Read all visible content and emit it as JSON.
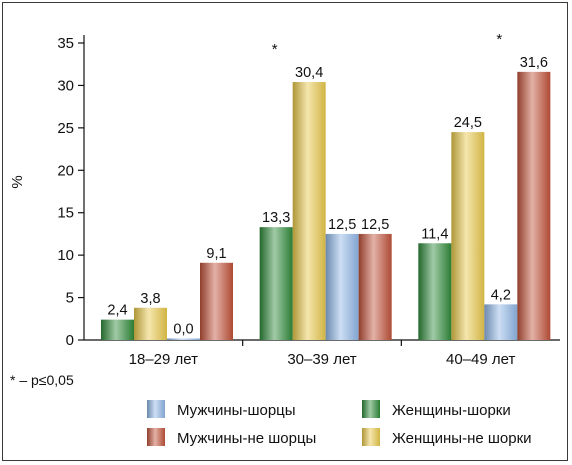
{
  "chart_data": {
    "type": "bar",
    "ylabel": "%",
    "ylim": [
      0,
      35
    ],
    "yticks": [
      "0",
      "5",
      "10",
      "15",
      "20",
      "25",
      "30",
      "35"
    ],
    "categories": [
      "18–29 лет",
      "30–39 лет",
      "40–49 лет"
    ],
    "series_order": [
      "Женщины-шорки",
      "Женщины-не шорки",
      "Мужчины-шорцы",
      "Мужчины-не шорцы"
    ],
    "series": [
      {
        "name": "Женщины-шорки",
        "color": "#2f8a3a",
        "values": [
          2.4,
          13.3,
          11.4
        ],
        "labels": [
          "2,4",
          "13,3",
          "11,4"
        ]
      },
      {
        "name": "Женщины-не шорки",
        "color": "#e8c84a",
        "values": [
          3.8,
          30.4,
          24.5
        ],
        "labels": [
          "3,8",
          "30,4",
          "24,5"
        ]
      },
      {
        "name": "Мужчины-шорцы",
        "color": "#8fb6e6",
        "values": [
          0.0,
          12.5,
          4.2
        ],
        "labels": [
          "0,0",
          "12,5",
          "4,2"
        ]
      },
      {
        "name": "Мужчины-не шорцы",
        "color": "#c0523a",
        "values": [
          9.1,
          12.5,
          31.6
        ],
        "labels": [
          "9,1",
          "12,5",
          "31,6"
        ]
      }
    ],
    "significance_marker": "*",
    "significant": [
      {
        "category": "30–39 лет",
        "series": "Женщины-не шорки"
      },
      {
        "category": "40–49 лет",
        "series": "Мужчины-не шорцы"
      }
    ],
    "footnote": "* – p≤0,05",
    "legend": {
      "placement": "bottom",
      "items": [
        {
          "series": "Мужчины-шорцы",
          "label": "Мужчины-шорцы"
        },
        {
          "series": "Женщины-шорки",
          "label": "Женщины-шорки"
        },
        {
          "series": "Мужчины-не шорцы",
          "label": "Мужчины-не шорцы"
        },
        {
          "series": "Женщины-не шорки",
          "label": "Женщины-не шорки"
        }
      ]
    },
    "grid": false
  }
}
